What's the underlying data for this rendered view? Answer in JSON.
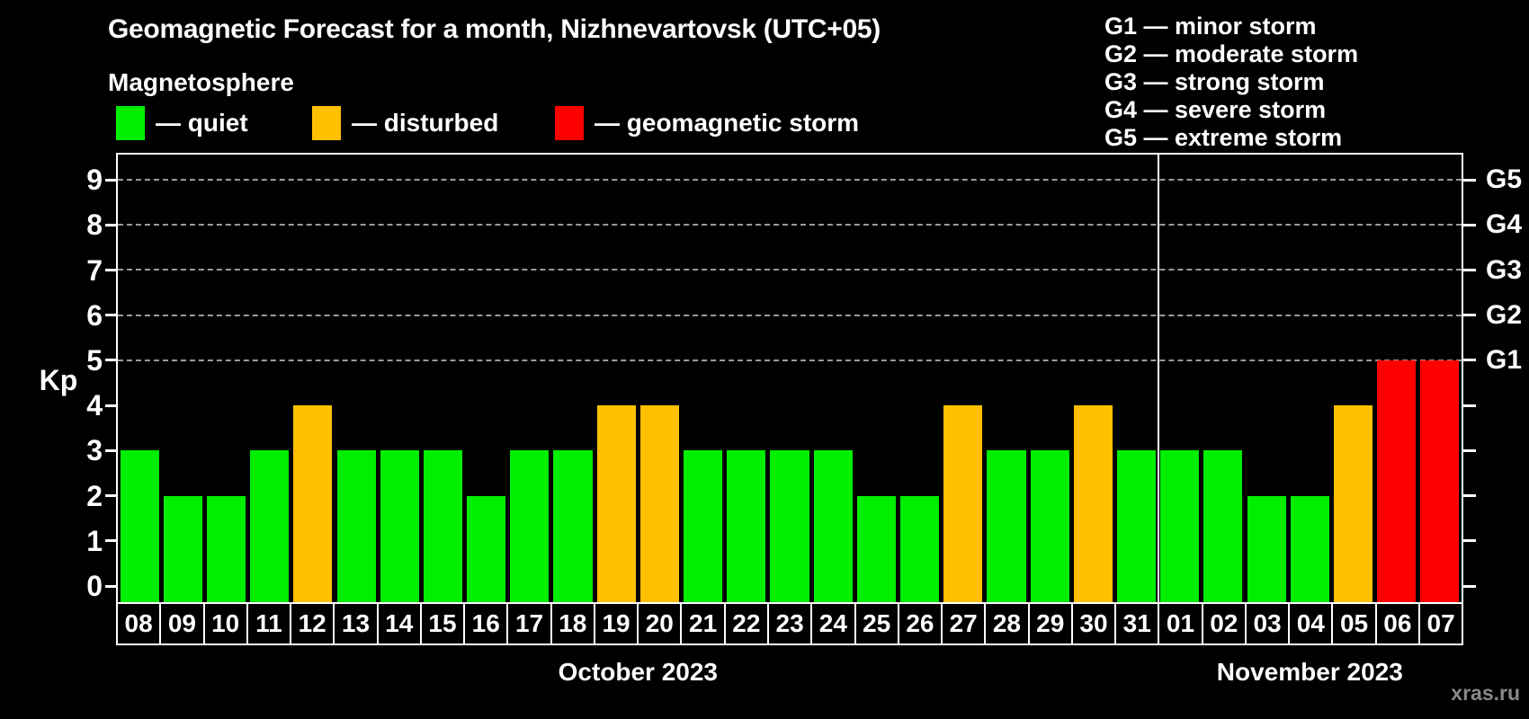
{
  "title": "Geomagnetic Forecast for a month, Nizhnevartovsk (UTC+05)",
  "subtitle": "Magnetosphere",
  "legend": {
    "items": [
      {
        "status": "quiet",
        "label": "— quiet",
        "color": "#00ee00"
      },
      {
        "status": "disturbed",
        "label": "— disturbed",
        "color": "#ffc000"
      },
      {
        "status": "storm",
        "label": "— geomagnetic storm",
        "color": "#ff0000"
      }
    ]
  },
  "g_legend": {
    "items": [
      {
        "label": "G1 — minor storm"
      },
      {
        "label": "G2 — moderate storm"
      },
      {
        "label": "G3 — strong storm"
      },
      {
        "label": "G4 — severe storm"
      },
      {
        "label": "G5 — extreme storm"
      }
    ]
  },
  "watermark": "xras.ru",
  "chart_data": {
    "type": "bar",
    "title": "Geomagnetic Forecast for a month, Nizhnevartovsk (UTC+05)",
    "ylabel": "Kp",
    "ylim": [
      0,
      9
    ],
    "yticks": [
      0,
      1,
      2,
      3,
      4,
      5,
      6,
      7,
      8,
      9
    ],
    "right_axis": {
      "labels": [
        "G1",
        "G2",
        "G3",
        "G4",
        "G5"
      ],
      "kp_levels": [
        5,
        6,
        7,
        8,
        9
      ]
    },
    "gridlines_at_kp": [
      5,
      6,
      7,
      8,
      9
    ],
    "grid": "dashed horizontal lines at storm levels only",
    "legend_position": "top-left and top-right",
    "months": [
      {
        "label": "October 2023",
        "days": [
          "08",
          "09",
          "10",
          "11",
          "12",
          "13",
          "14",
          "15",
          "16",
          "17",
          "18",
          "19",
          "20",
          "21",
          "22",
          "23",
          "24",
          "25",
          "26",
          "27",
          "28",
          "29",
          "30",
          "31"
        ]
      },
      {
        "label": "November 2023",
        "days": [
          "01",
          "02",
          "03",
          "04",
          "05",
          "06",
          "07"
        ]
      }
    ],
    "categories": [
      "08",
      "09",
      "10",
      "11",
      "12",
      "13",
      "14",
      "15",
      "16",
      "17",
      "18",
      "19",
      "20",
      "21",
      "22",
      "23",
      "24",
      "25",
      "26",
      "27",
      "28",
      "29",
      "30",
      "31",
      "01",
      "02",
      "03",
      "04",
      "05",
      "06",
      "07"
    ],
    "values": [
      3,
      2,
      2,
      3,
      4,
      3,
      3,
      3,
      2,
      3,
      3,
      4,
      4,
      3,
      3,
      3,
      3,
      2,
      2,
      4,
      3,
      3,
      4,
      3,
      3,
      3,
      2,
      2,
      4,
      5,
      5
    ],
    "statuses": [
      "quiet",
      "quiet",
      "quiet",
      "quiet",
      "disturbed",
      "quiet",
      "quiet",
      "quiet",
      "quiet",
      "quiet",
      "quiet",
      "disturbed",
      "disturbed",
      "quiet",
      "quiet",
      "quiet",
      "quiet",
      "quiet",
      "quiet",
      "disturbed",
      "quiet",
      "quiet",
      "disturbed",
      "quiet",
      "quiet",
      "quiet",
      "quiet",
      "quiet",
      "disturbed",
      "storm",
      "storm"
    ]
  }
}
